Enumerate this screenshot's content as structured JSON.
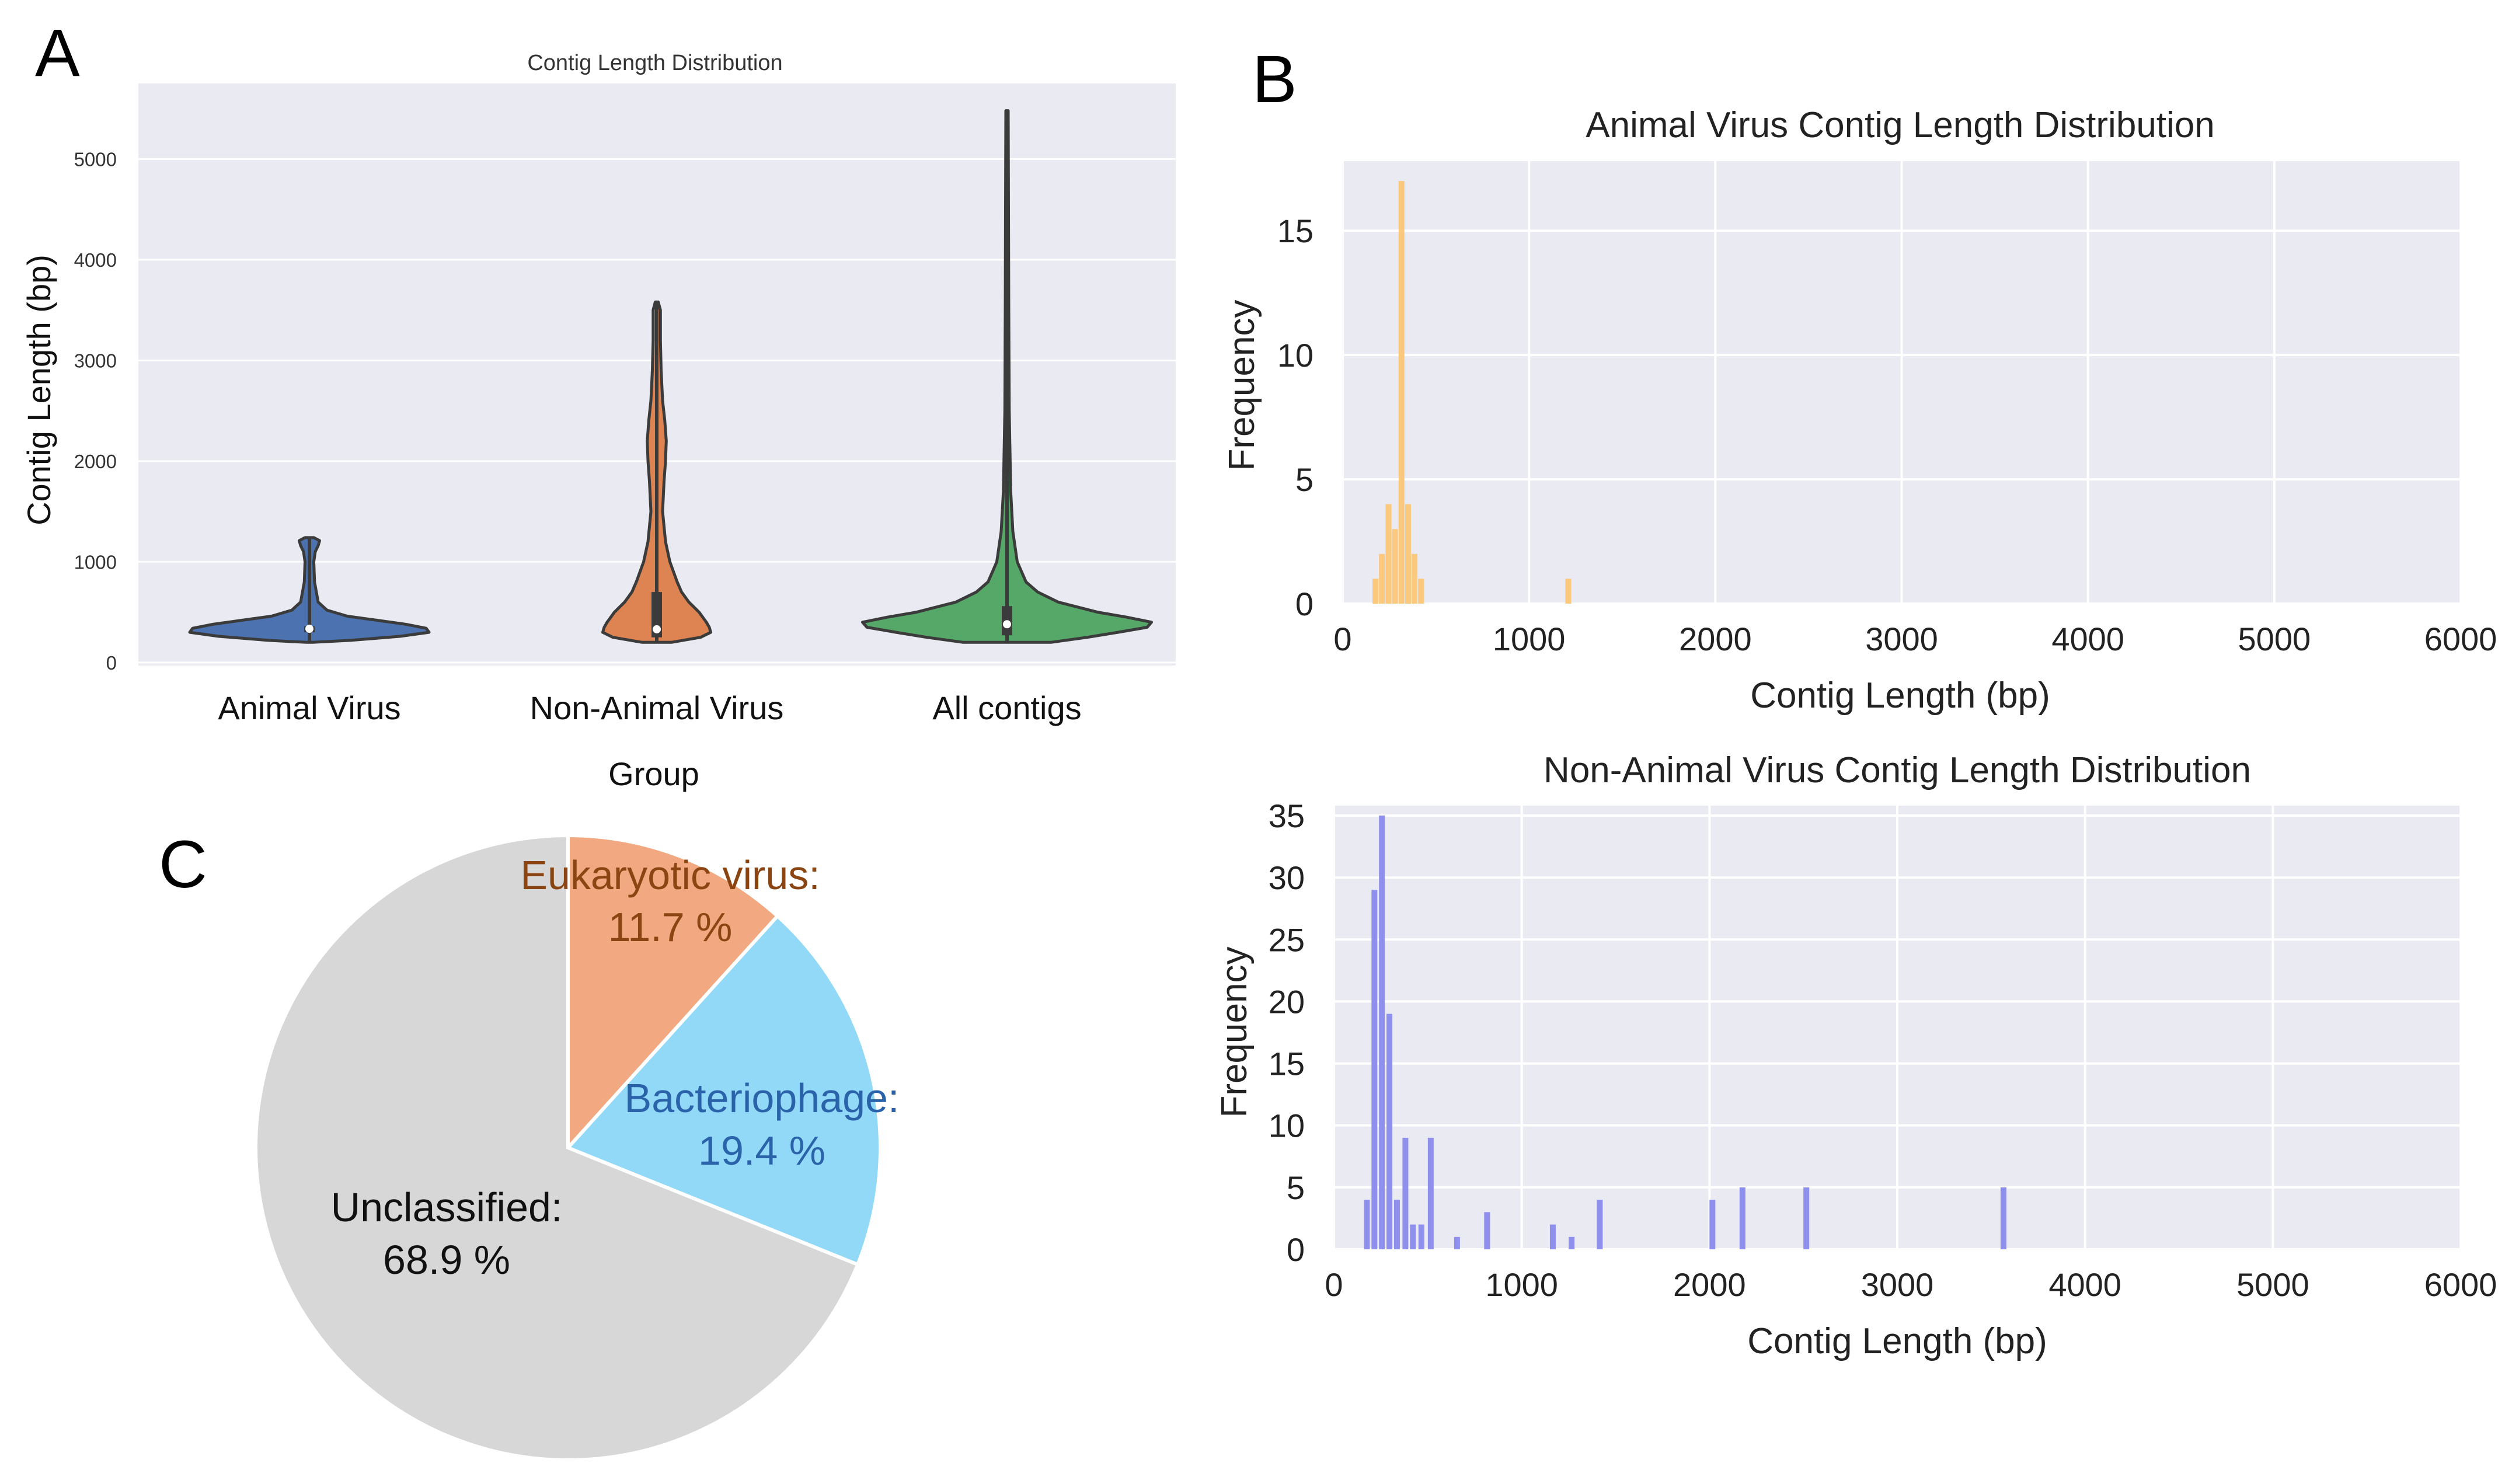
{
  "panels": {
    "A": "A",
    "B": "B",
    "C": "C"
  },
  "chart_data": [
    {
      "id": "violin",
      "type": "violin",
      "title": "Contig Length Distribution",
      "xlabel": "Group",
      "ylabel": "Contig Length (bp)",
      "ylim": [
        -30,
        5750
      ],
      "yticks": [
        0,
        1000,
        2000,
        3000,
        4000,
        5000
      ],
      "grid": true,
      "groups": [
        {
          "name": "Animal Virus",
          "color": "#4c72b0",
          "min": 200,
          "max": 1240,
          "q1": 300,
          "median": 335,
          "q3": 360,
          "profile": [
            [
              200,
              0.02
            ],
            [
              220,
              0.28
            ],
            [
              260,
              0.62
            ],
            [
              300,
              0.82
            ],
            [
              340,
              0.8
            ],
            [
              380,
              0.66
            ],
            [
              420,
              0.46
            ],
            [
              460,
              0.26
            ],
            [
              520,
              0.12
            ],
            [
              600,
              0.06
            ],
            [
              800,
              0.035
            ],
            [
              1000,
              0.03
            ],
            [
              1100,
              0.04
            ],
            [
              1160,
              0.06
            ],
            [
              1210,
              0.07
            ],
            [
              1240,
              0.03
            ]
          ]
        },
        {
          "name": "Non-Animal Virus",
          "color": "#dd8452",
          "min": 200,
          "max": 3580,
          "q1": 250,
          "median": 330,
          "q3": 700,
          "profile": [
            [
              200,
              0.1
            ],
            [
              250,
              0.3
            ],
            [
              300,
              0.37
            ],
            [
              350,
              0.36
            ],
            [
              400,
              0.34
            ],
            [
              500,
              0.29
            ],
            [
              600,
              0.22
            ],
            [
              700,
              0.17
            ],
            [
              800,
              0.14
            ],
            [
              1000,
              0.09
            ],
            [
              1200,
              0.06
            ],
            [
              1500,
              0.04
            ],
            [
              1800,
              0.05
            ],
            [
              2000,
              0.06
            ],
            [
              2200,
              0.065
            ],
            [
              2400,
              0.055
            ],
            [
              2600,
              0.04
            ],
            [
              2900,
              0.03
            ],
            [
              3200,
              0.025
            ],
            [
              3500,
              0.025
            ],
            [
              3580,
              0.01
            ]
          ]
        },
        {
          "name": "All contigs",
          "color": "#55a868",
          "min": 200,
          "max": 5480,
          "q1": 270,
          "median": 380,
          "q3": 560,
          "profile": [
            [
              200,
              0.3
            ],
            [
              250,
              0.55
            ],
            [
              300,
              0.76
            ],
            [
              350,
              0.96
            ],
            [
              400,
              0.99
            ],
            [
              450,
              0.82
            ],
            [
              500,
              0.62
            ],
            [
              600,
              0.35
            ],
            [
              700,
              0.21
            ],
            [
              800,
              0.13
            ],
            [
              1000,
              0.07
            ],
            [
              1300,
              0.04
            ],
            [
              1700,
              0.025
            ],
            [
              2500,
              0.015
            ],
            [
              3500,
              0.012
            ],
            [
              4500,
              0.01
            ],
            [
              5480,
              0.008
            ]
          ]
        }
      ]
    },
    {
      "id": "hist-animal",
      "type": "histogram",
      "title": "Animal Virus Contig Length Distribution",
      "xlabel": "Contig Length (bp)",
      "ylabel": "Frequency",
      "xlim": [
        0,
        6000
      ],
      "ylim": [
        0,
        17.8
      ],
      "xticks": [
        0,
        1000,
        2000,
        3000,
        4000,
        5000,
        6000
      ],
      "yticks": [
        0,
        5,
        10,
        15
      ],
      "bin_width": 35,
      "color": "#fac97d",
      "bins": [
        {
          "x": 160,
          "count": 1
        },
        {
          "x": 195,
          "count": 2
        },
        {
          "x": 230,
          "count": 4
        },
        {
          "x": 265,
          "count": 3
        },
        {
          "x": 300,
          "count": 17
        },
        {
          "x": 335,
          "count": 4
        },
        {
          "x": 370,
          "count": 2
        },
        {
          "x": 405,
          "count": 1
        },
        {
          "x": 1195,
          "count": 1
        }
      ]
    },
    {
      "id": "hist-nonanimal",
      "type": "histogram",
      "title": "Non-Animal Virus Contig Length Distribution",
      "xlabel": "Contig Length (bp)",
      "ylabel": "Frequency",
      "xlim": [
        0,
        6000
      ],
      "ylim": [
        0,
        35.8
      ],
      "xticks": [
        0,
        1000,
        2000,
        3000,
        4000,
        5000,
        6000
      ],
      "yticks": [
        0,
        5,
        10,
        15,
        20,
        25,
        30,
        35
      ],
      "bin_width": 35,
      "color": "#8f8fee",
      "bins": [
        {
          "x": 160,
          "count": 4
        },
        {
          "x": 200,
          "count": 29
        },
        {
          "x": 240,
          "count": 35
        },
        {
          "x": 280,
          "count": 19
        },
        {
          "x": 320,
          "count": 4
        },
        {
          "x": 365,
          "count": 9
        },
        {
          "x": 405,
          "count": 2
        },
        {
          "x": 450,
          "count": 2
        },
        {
          "x": 500,
          "count": 9
        },
        {
          "x": 640,
          "count": 1
        },
        {
          "x": 800,
          "count": 3
        },
        {
          "x": 1150,
          "count": 2
        },
        {
          "x": 1250,
          "count": 1
        },
        {
          "x": 1400,
          "count": 4
        },
        {
          "x": 2000,
          "count": 4
        },
        {
          "x": 2160,
          "count": 5
        },
        {
          "x": 2500,
          "count": 5
        },
        {
          "x": 3550,
          "count": 5
        }
      ]
    },
    {
      "id": "pie",
      "type": "pie",
      "title": "",
      "slices": [
        {
          "label": "Eukaryotic virus:",
          "pct": "11.7 %",
          "value": 11.7,
          "color": "#f2a880",
          "text_color": "#8b4513"
        },
        {
          "label": "Bacteriophage:",
          "pct": "19.4 %",
          "value": 19.4,
          "color": "#91d9f7",
          "text_color": "#2a63aa"
        },
        {
          "label": "Unclassified:",
          "pct": "68.9 %",
          "value": 68.9,
          "color": "#d7d7d7",
          "text_color": "#111111"
        }
      ]
    }
  ]
}
